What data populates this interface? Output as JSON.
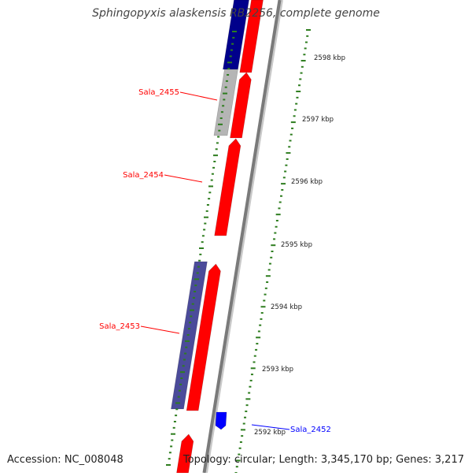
{
  "title": "Sphingopyxis alaskensis RB2256, complete genome",
  "footer": {
    "accession": "Accession: NC_008048",
    "topology": "Topology: circular; Length: 3,345,170 bp; Genes: 3,217"
  },
  "scale": {
    "ticks": [
      "2598 kbp",
      "2597 kbp",
      "2596 kbp",
      "2595 kbp",
      "2594 kbp",
      "2593 kbp",
      "2592 kbp"
    ]
  },
  "genes": [
    {
      "name": "Sala_2455",
      "color": "#ff0000"
    },
    {
      "name": "Sala_2454",
      "color": "#ff0000"
    },
    {
      "name": "Sala_2453",
      "color": "#ff0000"
    },
    {
      "name": "Sala_2452",
      "color": "#0000ff"
    }
  ],
  "colors": {
    "forward": "#ff0000",
    "reverse_dark": "#00008b",
    "reverse_purple": "#4b4b9a",
    "grey": "#b5b5b5",
    "small_blue": "#0000ff",
    "backbone": "#7a7a7a",
    "ticks": "#2e7d1f"
  }
}
